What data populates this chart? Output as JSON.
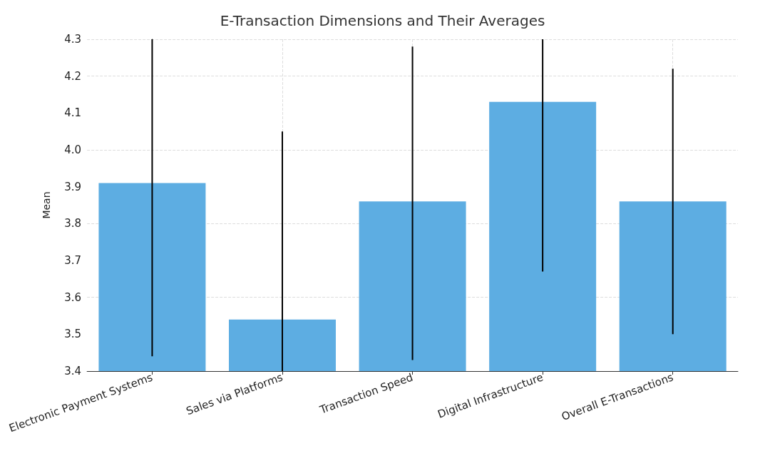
{
  "chart_data": {
    "type": "bar",
    "title": "E-Transaction Dimensions and Their Averages",
    "ylabel": "Mean",
    "categories": [
      "Electronic Payment Systems",
      "Sales via Platforms",
      "Transaction Speed",
      "Digital Infrastructure",
      "Overall E-Transactions"
    ],
    "values": [
      3.91,
      3.54,
      3.86,
      4.13,
      3.86
    ],
    "errors": [
      [
        3.44,
        4.3
      ],
      [
        3.4,
        4.05
      ],
      [
        3.43,
        4.28
      ],
      [
        3.67,
        4.3
      ],
      [
        3.5,
        4.22
      ]
    ],
    "color": "#5dade2",
    "ylim": [
      3.4,
      4.3
    ],
    "yticks": [
      3.4,
      3.5,
      3.6,
      3.7,
      3.8,
      3.9,
      {
        "value": 4,
        "label": "4.0"
      },
      4.1,
      4.2,
      4.3
    ],
    "grid": true
  }
}
